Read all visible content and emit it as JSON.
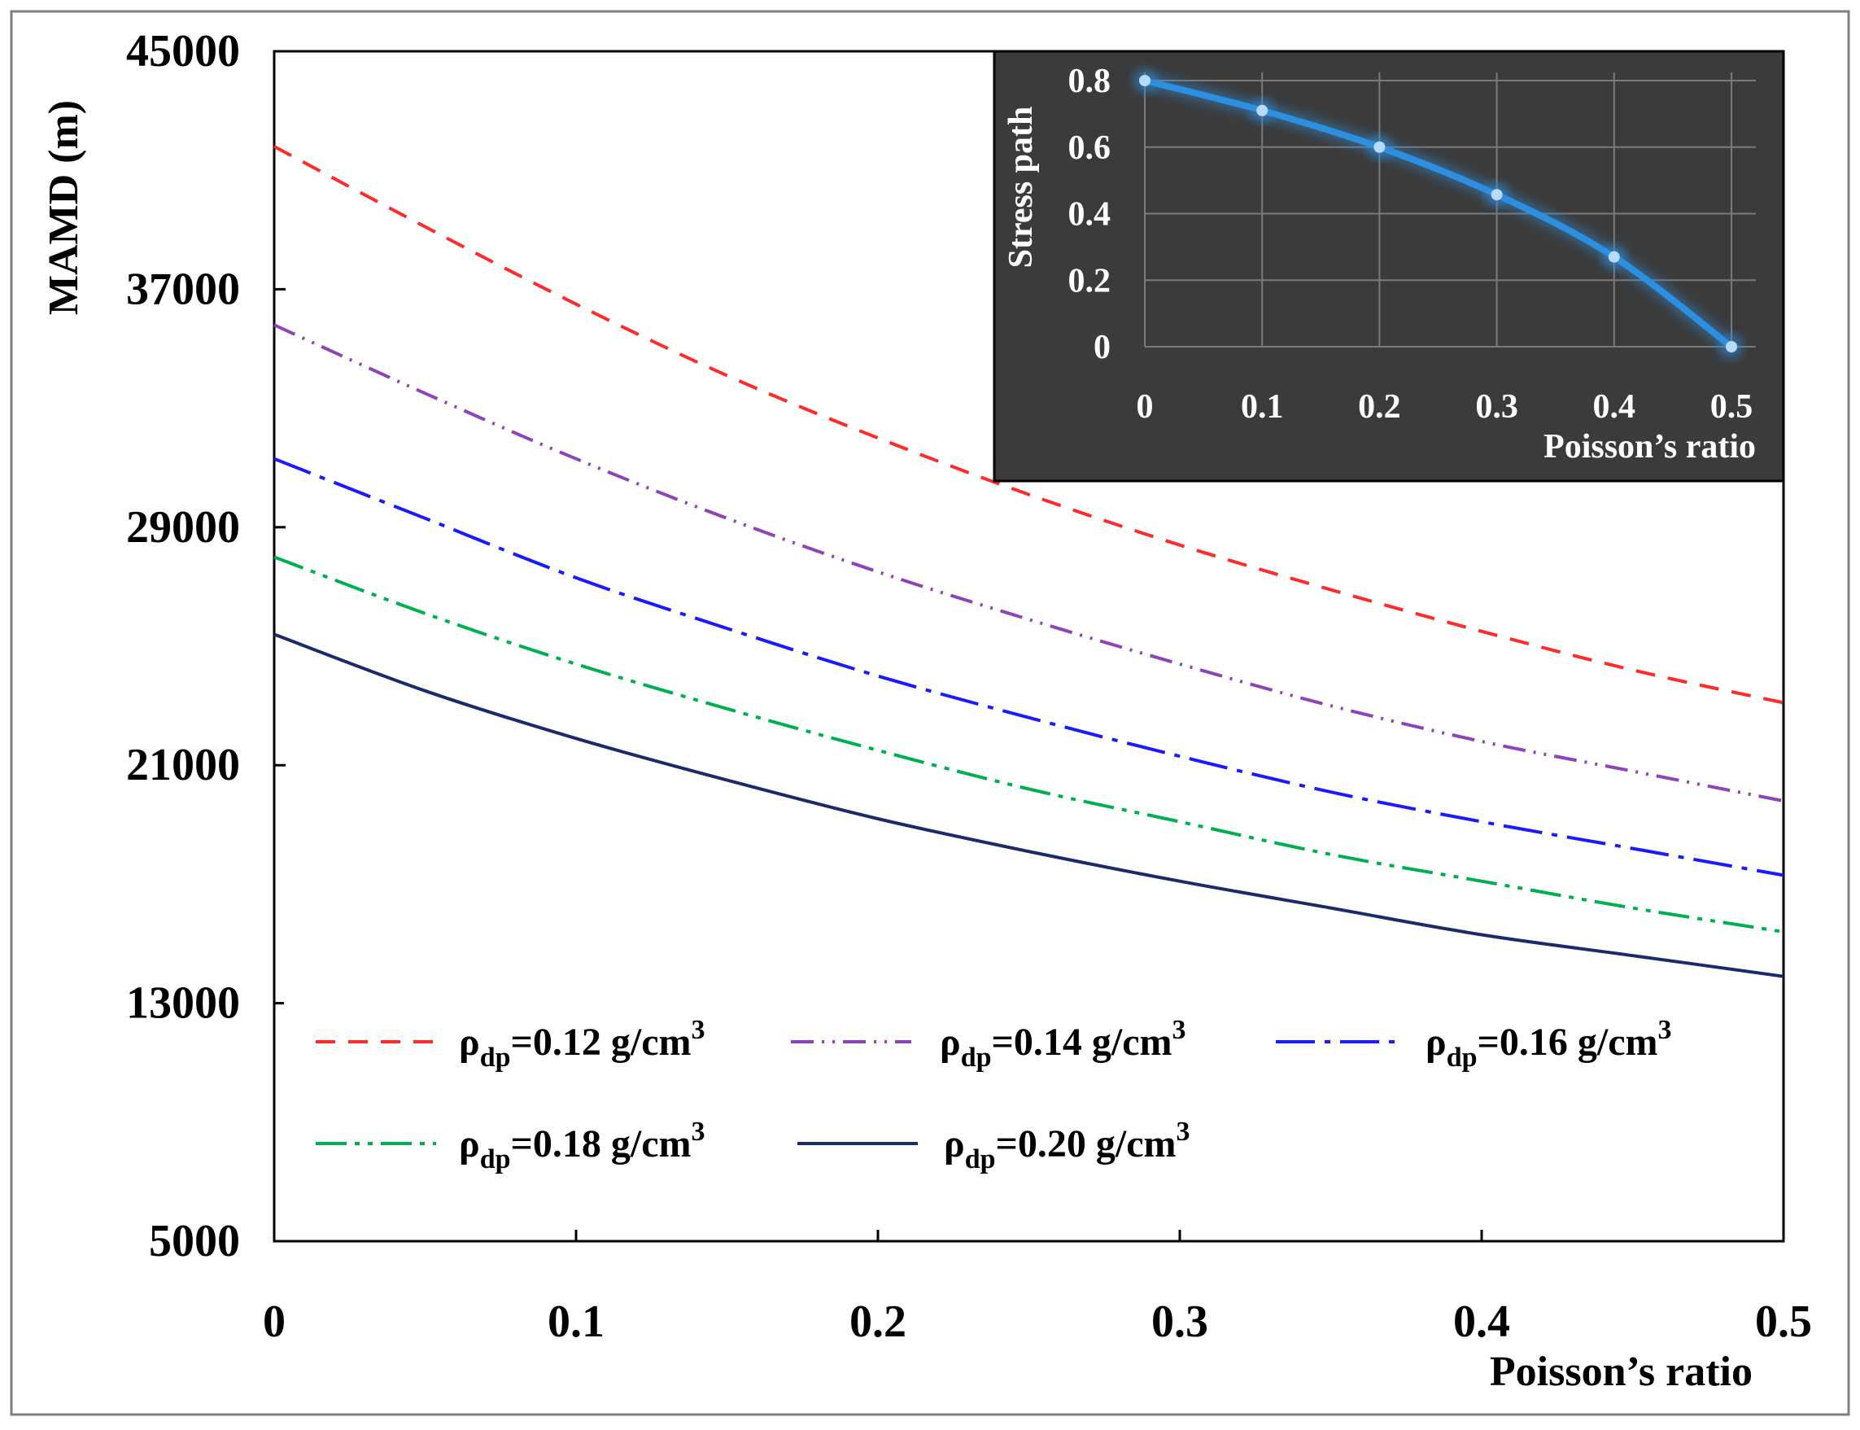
{
  "chart_data": [
    {
      "type": "line",
      "title": "",
      "xlabel": "Poisson’s ratio",
      "ylabel": "MAMD (m)",
      "xlim": [
        0,
        0.5
      ],
      "ylim": [
        5000,
        45000
      ],
      "xticks": [
        0,
        0.1,
        0.2,
        0.3,
        0.4,
        0.5
      ],
      "xtick_labels": [
        "0",
        "0.1",
        "0.2",
        "0.3",
        "0.4",
        "0.5"
      ],
      "yticks": [
        5000,
        13000,
        21000,
        29000,
        37000,
        45000
      ],
      "ytick_labels": [
        "5000",
        "13000",
        "21000",
        "29000",
        "37000",
        "45000"
      ],
      "grid": false,
      "legend_position": "bottom, inside plot, 3 columns",
      "x": [
        0,
        0.05,
        0.1,
        0.15,
        0.2,
        0.25,
        0.3,
        0.35,
        0.4,
        0.45,
        0.5
      ],
      "series": [
        {
          "name": "ρdp=0.12 g/cm3",
          "symbol": "ρ",
          "subscript": "dp",
          "value_text": "=0.12 g/cm",
          "superscript": "3",
          "color": "#ff2a2a",
          "dash": "dashed",
          "values": [
            41800,
            39100,
            36500,
            34100,
            32000,
            30100,
            28400,
            26900,
            25500,
            24200,
            23100
          ]
        },
        {
          "name": "ρdp=0.14 g/cm3",
          "symbol": "ρ",
          "subscript": "dp",
          "value_text": "=0.14 g/cm",
          "superscript": "3",
          "color": "#8e44b8",
          "dash": "dash-dot-dot",
          "values": [
            35800,
            33500,
            31300,
            29300,
            27500,
            25900,
            24400,
            23000,
            21800,
            20800,
            19800
          ]
        },
        {
          "name": "ρdp=0.16 g/cm3",
          "symbol": "ρ",
          "subscript": "dp",
          "value_text": "=0.16 g/cm",
          "superscript": "3",
          "color": "#1a1aff",
          "dash": "long-dash-dot",
          "values": [
            31300,
            29300,
            27300,
            25600,
            24000,
            22600,
            21300,
            20100,
            19100,
            18200,
            17300
          ]
        },
        {
          "name": "ρdp=0.18 g/cm3",
          "symbol": "ρ",
          "subscript": "dp",
          "value_text": "=0.18 g/cm",
          "superscript": "3",
          "color": "#00b050",
          "dash": "long-dash-dot-dot",
          "values": [
            28000,
            26100,
            24400,
            22900,
            21500,
            20200,
            19100,
            18000,
            17100,
            16200,
            15400
          ]
        },
        {
          "name": "ρdp=0.20 g/cm3",
          "symbol": "ρ",
          "subscript": "dp",
          "value_text": "=0.20 g/cm",
          "superscript": "3",
          "color": "#1c2a6b",
          "dash": "solid",
          "values": [
            25400,
            23500,
            21900,
            20500,
            19200,
            18100,
            17100,
            16200,
            15300,
            14600,
            13900
          ]
        }
      ]
    },
    {
      "type": "line",
      "title": "",
      "placement": "inset, top-right",
      "xlabel": "Poisson’s ratio",
      "ylabel": "Stress path",
      "xlim": [
        0,
        0.5
      ],
      "ylim": [
        0,
        0.8
      ],
      "xticks": [
        0,
        0.1,
        0.2,
        0.3,
        0.4,
        0.5
      ],
      "xtick_labels": [
        "0",
        "0.1",
        "0.2",
        "0.3",
        "0.4",
        "0.5"
      ],
      "yticks": [
        0,
        0.2,
        0.4,
        0.6,
        0.8
      ],
      "ytick_labels": [
        "0",
        "0.2",
        "0.4",
        "0.6",
        "0.8"
      ],
      "grid": true,
      "background": "#3b3b3b",
      "gridColor": "#7a7a7a",
      "textColor": "#ffffff",
      "x": [
        0,
        0.1,
        0.2,
        0.3,
        0.4,
        0.5
      ],
      "series": [
        {
          "name": "Stress path",
          "color": "#2d8fe0",
          "markerColor": "#b7dbff",
          "values": [
            0.8,
            0.71,
            0.6,
            0.457,
            0.27,
            0.0
          ]
        }
      ]
    }
  ]
}
